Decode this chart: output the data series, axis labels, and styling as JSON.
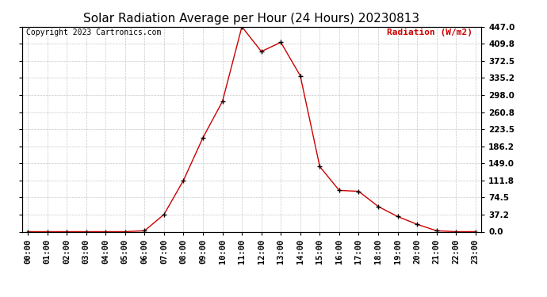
{
  "title": "Solar Radiation Average per Hour (24 Hours) 20230813",
  "ylabel_text": "Radiation (W/m2)",
  "copyright": "Copyright 2023 Cartronics.com",
  "hours": [
    "00:00",
    "01:00",
    "02:00",
    "03:00",
    "04:00",
    "05:00",
    "06:00",
    "07:00",
    "08:00",
    "09:00",
    "10:00",
    "11:00",
    "12:00",
    "13:00",
    "14:00",
    "15:00",
    "16:00",
    "17:00",
    "18:00",
    "19:00",
    "20:00",
    "21:00",
    "22:00",
    "23:00"
  ],
  "values": [
    0.0,
    0.0,
    0.0,
    0.0,
    0.0,
    0.0,
    2.0,
    37.5,
    112.0,
    205.0,
    284.0,
    447.0,
    393.0,
    413.0,
    340.0,
    142.0,
    90.0,
    88.0,
    55.0,
    33.0,
    16.0,
    2.0,
    0.0,
    0.0
  ],
  "line_color": "#cc0000",
  "marker_color": "#000000",
  "grid_color": "#c8c8c8",
  "bg_color": "#ffffff",
  "title_color": "#000000",
  "ylabel_color": "#cc0000",
  "copyright_color": "#000000",
  "ytick_labels": [
    "0.0",
    "37.2",
    "74.5",
    "111.8",
    "149.0",
    "186.2",
    "223.5",
    "260.8",
    "298.0",
    "335.2",
    "372.5",
    "409.8",
    "447.0"
  ],
  "ytick_values": [
    0.0,
    37.2,
    74.5,
    111.8,
    149.0,
    186.2,
    223.5,
    260.8,
    298.0,
    335.2,
    372.5,
    409.8,
    447.0
  ],
  "ylim": [
    0.0,
    447.0
  ],
  "title_fontsize": 11,
  "label_fontsize": 8,
  "tick_fontsize": 7.5,
  "copyright_fontsize": 7,
  "ylabel_fontsize": 8
}
